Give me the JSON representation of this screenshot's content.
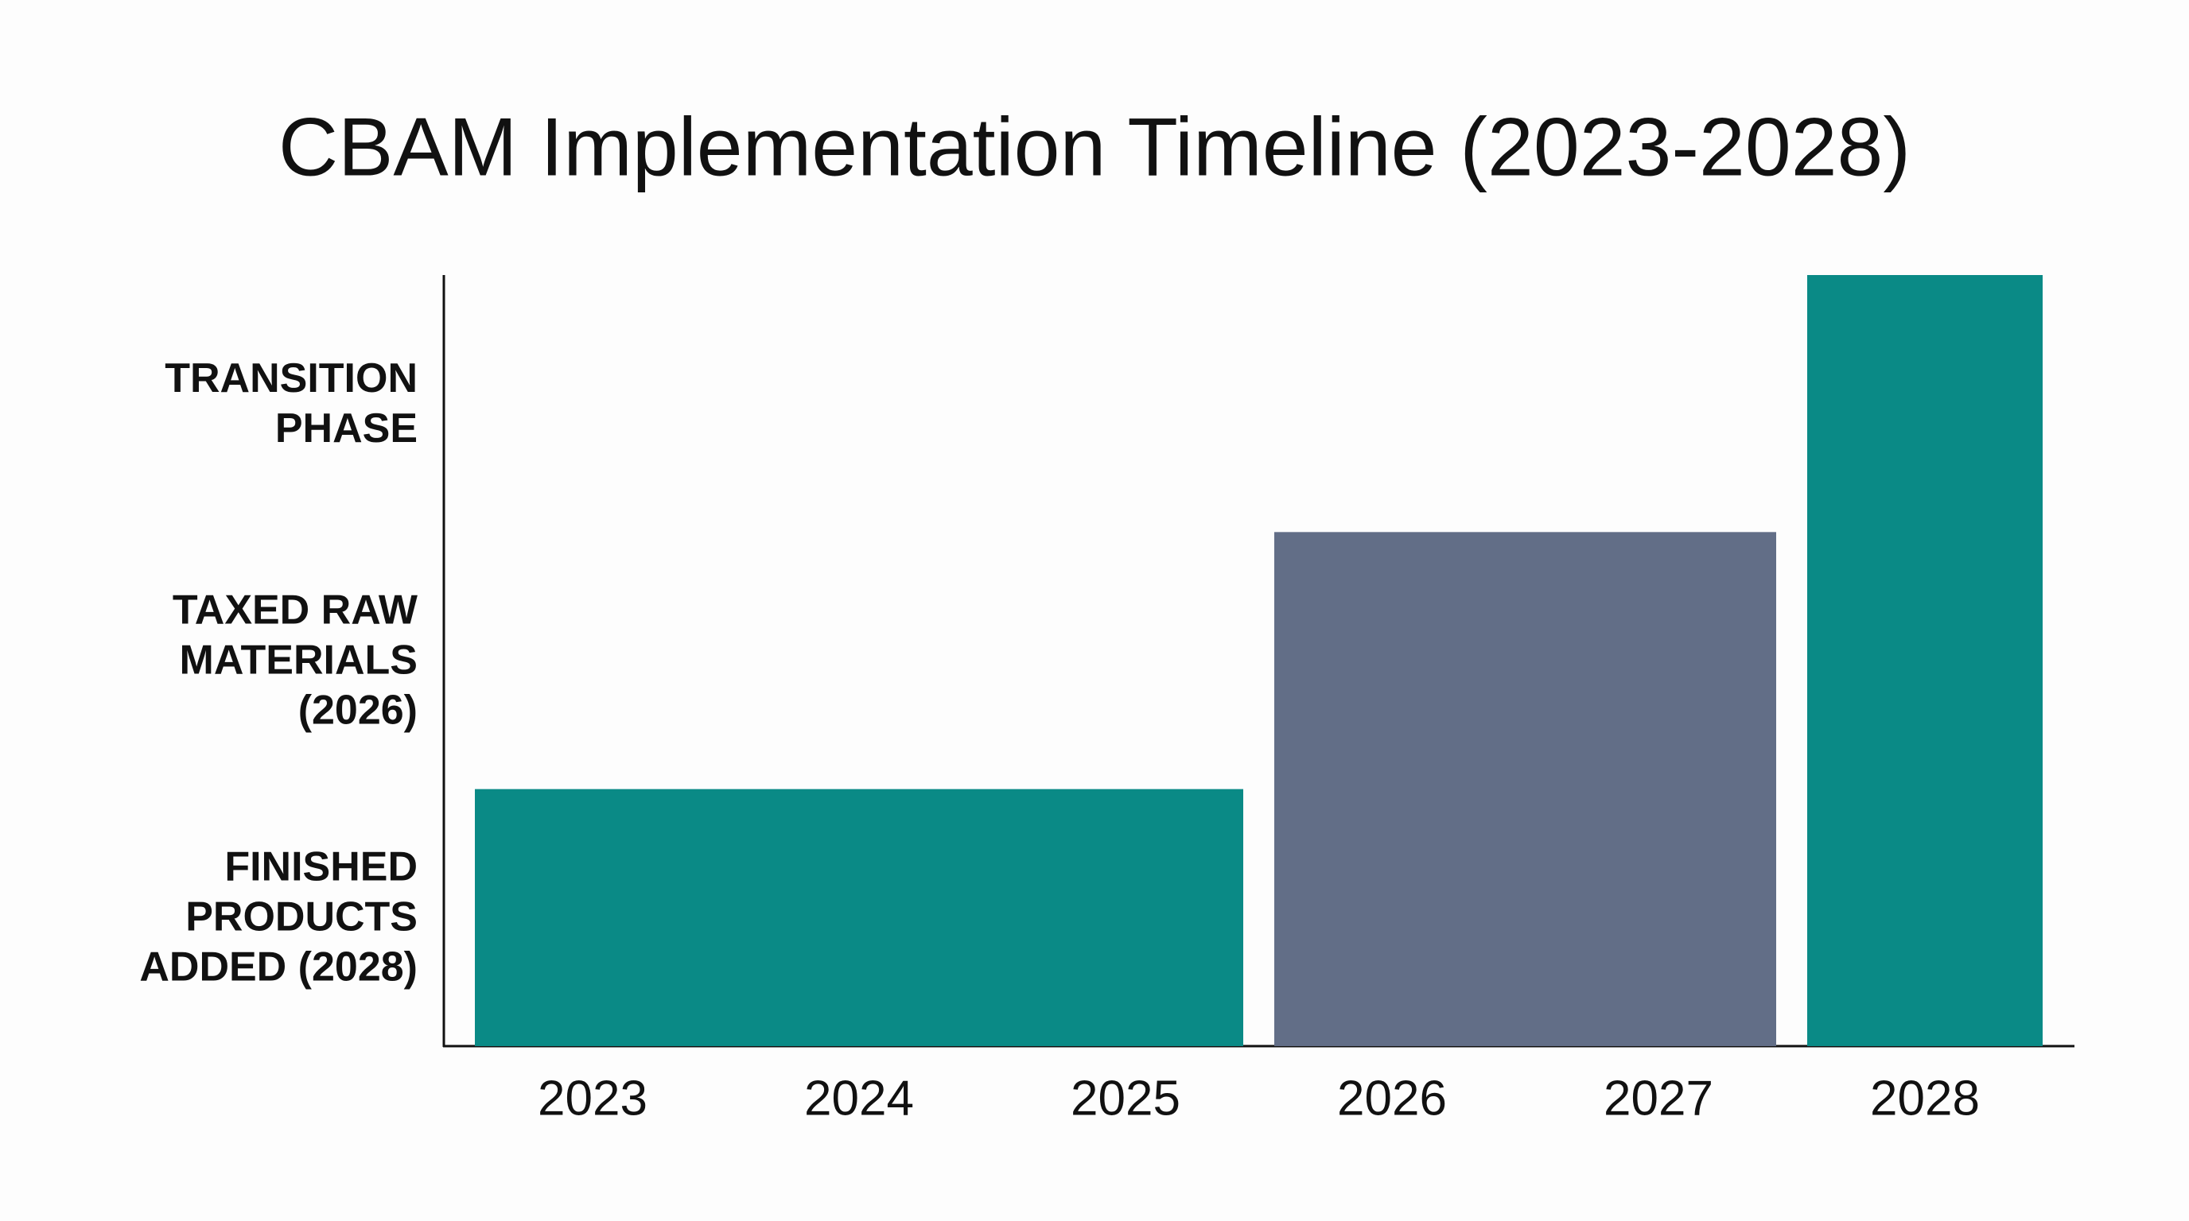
{
  "chart_data": {
    "type": "bar",
    "title": "CBAM Implementation Timeline (2023-2028)",
    "categories": [
      "2023",
      "2024",
      "2025",
      "2026",
      "2027",
      "2028"
    ],
    "values": [
      1,
      1,
      1,
      2,
      2,
      3
    ],
    "colors": [
      "#0a8a86",
      "#0a8a86",
      "#0a8a86",
      "#626e87",
      "#626e87",
      "#0a8a86"
    ],
    "ylim": [
      0,
      3
    ],
    "yticks": [
      {
        "value": 0.5,
        "label": "FINISHED PRODUCTS ADDED (2028)"
      },
      {
        "value": 1.5,
        "label": "TAXED RAW MATERIALS (2026)"
      },
      {
        "value": 2.5,
        "label": "TRANSITION PHASE"
      }
    ]
  }
}
